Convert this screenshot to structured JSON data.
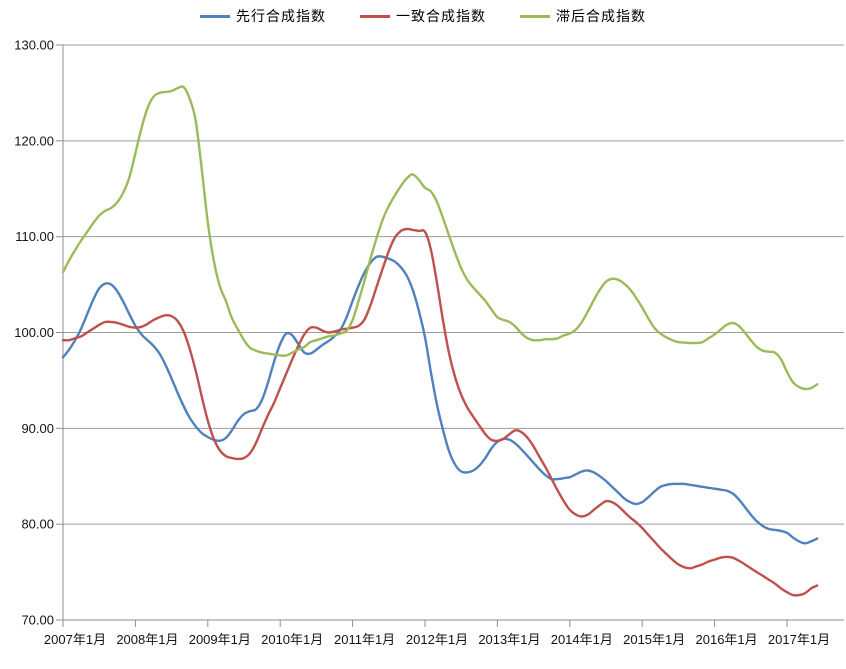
{
  "chart_data": {
    "type": "line",
    "title": "",
    "xlabel": "",
    "ylabel": "",
    "grid": true,
    "legend_position": "top",
    "ylim": [
      70,
      130
    ],
    "ytick_step": 10,
    "x_start": "2007年1月",
    "x_end": "2017年6月",
    "x_frequency": "monthly",
    "yticks": [
      {
        "label": "130.00",
        "value": 130
      },
      {
        "label": "120.00",
        "value": 120
      },
      {
        "label": "110.00",
        "value": 110
      },
      {
        "label": "100.00",
        "value": 100
      },
      {
        "label": "90.00",
        "value": 90
      },
      {
        "label": "80.00",
        "value": 80
      },
      {
        "label": "70.00",
        "value": 70
      }
    ],
    "xticks": [
      {
        "label": "2007年1月",
        "month_index": 0
      },
      {
        "label": "2008年1月",
        "month_index": 12
      },
      {
        "label": "2009年1月",
        "month_index": 24
      },
      {
        "label": "2010年1月",
        "month_index": 36
      },
      {
        "label": "2011年1月",
        "month_index": 48
      },
      {
        "label": "2012年1月",
        "month_index": 60
      },
      {
        "label": "2013年1月",
        "month_index": 72
      },
      {
        "label": "2014年1月",
        "month_index": 84
      },
      {
        "label": "2015年1月",
        "month_index": 96
      },
      {
        "label": "2016年1月",
        "month_index": 108
      },
      {
        "label": "2017年1月",
        "month_index": 120
      }
    ],
    "series": [
      {
        "name": "先行合成指数",
        "color": "#4F81BD",
        "values": [
          97.4,
          98.2,
          99.2,
          100.4,
          101.9,
          103.4,
          104.6,
          105.1,
          105.0,
          104.3,
          103.2,
          101.9,
          100.7,
          99.8,
          99.2,
          98.6,
          97.8,
          96.6,
          95.2,
          93.7,
          92.3,
          91.1,
          90.2,
          89.5,
          89.1,
          88.8,
          88.7,
          89.0,
          89.8,
          90.8,
          91.5,
          91.8,
          92.0,
          93.0,
          94.8,
          97.0,
          98.8,
          99.9,
          99.7,
          98.8,
          97.9,
          97.8,
          98.2,
          98.7,
          99.1,
          99.6,
          100.3,
          101.6,
          103.3,
          104.9,
          106.3,
          107.3,
          107.9,
          107.9,
          107.7,
          107.4,
          106.8,
          105.9,
          104.4,
          102.2,
          99.5,
          95.8,
          92.4,
          89.8,
          87.6,
          86.2,
          85.5,
          85.4,
          85.6,
          86.1,
          86.9,
          87.9,
          88.6,
          88.9,
          88.8,
          88.4,
          87.8,
          87.1,
          86.4,
          85.7,
          85.1,
          84.7,
          84.7,
          84.8,
          84.9,
          85.2,
          85.5,
          85.6,
          85.4,
          85.0,
          84.5,
          83.9,
          83.3,
          82.7,
          82.3,
          82.1,
          82.3,
          82.8,
          83.4,
          83.9,
          84.1,
          84.2,
          84.2,
          84.2,
          84.1,
          84.0,
          83.9,
          83.8,
          83.7,
          83.6,
          83.5,
          83.2,
          82.6,
          81.8,
          81.0,
          80.3,
          79.8,
          79.5,
          79.4,
          79.3,
          79.1,
          78.6,
          78.2,
          78.0,
          78.2,
          78.5
        ]
      },
      {
        "name": "一致合成指数",
        "color": "#C0504D",
        "values": [
          99.2,
          99.2,
          99.4,
          99.6,
          100.0,
          100.4,
          100.8,
          101.1,
          101.1,
          101.0,
          100.8,
          100.6,
          100.5,
          100.6,
          100.9,
          101.3,
          101.6,
          101.8,
          101.7,
          101.2,
          100.1,
          98.3,
          96.0,
          93.3,
          90.8,
          88.9,
          87.7,
          87.1,
          86.9,
          86.8,
          86.9,
          87.4,
          88.5,
          90.0,
          91.4,
          92.7,
          94.2,
          95.7,
          97.2,
          98.6,
          99.8,
          100.5,
          100.5,
          100.2,
          100.0,
          100.1,
          100.3,
          100.4,
          100.5,
          100.7,
          101.4,
          102.9,
          104.8,
          106.7,
          108.5,
          109.9,
          110.6,
          110.8,
          110.7,
          110.6,
          110.5,
          108.6,
          105.1,
          101.2,
          97.8,
          95.3,
          93.5,
          92.2,
          91.2,
          90.3,
          89.4,
          88.8,
          88.7,
          88.9,
          89.4,
          89.8,
          89.6,
          89.0,
          88.1,
          87.0,
          85.9,
          84.7,
          83.5,
          82.4,
          81.5,
          81.0,
          80.8,
          81.0,
          81.5,
          82.0,
          82.4,
          82.3,
          81.9,
          81.3,
          80.7,
          80.2,
          79.6,
          78.9,
          78.2,
          77.5,
          76.9,
          76.3,
          75.8,
          75.5,
          75.4,
          75.6,
          75.8,
          76.1,
          76.3,
          76.5,
          76.6,
          76.5,
          76.2,
          75.8,
          75.4,
          75.0,
          74.6,
          74.2,
          73.8,
          73.3,
          72.9,
          72.6,
          72.6,
          72.8,
          73.3,
          73.6
        ]
      },
      {
        "name": "滞后合成指数",
        "color": "#9BBB59",
        "values": [
          106.3,
          107.5,
          108.6,
          109.6,
          110.5,
          111.4,
          112.2,
          112.7,
          113.0,
          113.6,
          114.6,
          116.2,
          118.7,
          121.3,
          123.4,
          124.6,
          125.0,
          125.1,
          125.2,
          125.5,
          125.6,
          124.4,
          122.1,
          117.0,
          111.5,
          107.5,
          104.8,
          103.3,
          101.5,
          100.3,
          99.2,
          98.4,
          98.1,
          97.9,
          97.8,
          97.7,
          97.6,
          97.6,
          97.9,
          98.2,
          98.5,
          99.0,
          99.2,
          99.4,
          99.6,
          99.7,
          99.9,
          100.2,
          101.3,
          103.3,
          105.5,
          107.8,
          109.9,
          111.8,
          113.2,
          114.3,
          115.3,
          116.1,
          116.5,
          115.9,
          115.1,
          114.7,
          113.6,
          111.9,
          110.1,
          108.3,
          106.7,
          105.5,
          104.7,
          104.0,
          103.3,
          102.4,
          101.6,
          101.3,
          101.1,
          100.6,
          99.9,
          99.4,
          99.2,
          99.2,
          99.3,
          99.3,
          99.4,
          99.7,
          99.9,
          100.3,
          101.1,
          102.2,
          103.4,
          104.5,
          105.3,
          105.6,
          105.5,
          105.1,
          104.5,
          103.6,
          102.6,
          101.5,
          100.5,
          99.9,
          99.5,
          99.2,
          99.0,
          98.95,
          98.9,
          98.9,
          99.0,
          99.4,
          99.8,
          100.3,
          100.8,
          101.0,
          100.7,
          100.0,
          99.2,
          98.5,
          98.1,
          98.0,
          97.9,
          97.2,
          95.9,
          94.8,
          94.3,
          94.1,
          94.2,
          94.6
        ]
      }
    ],
    "style": {
      "background_color": "#FFFFFF",
      "gridline_color": "#9C9C9C",
      "axis_color": "#8E8E8E",
      "tick_label_color": "#141414",
      "line_width": 2.4
    }
  }
}
